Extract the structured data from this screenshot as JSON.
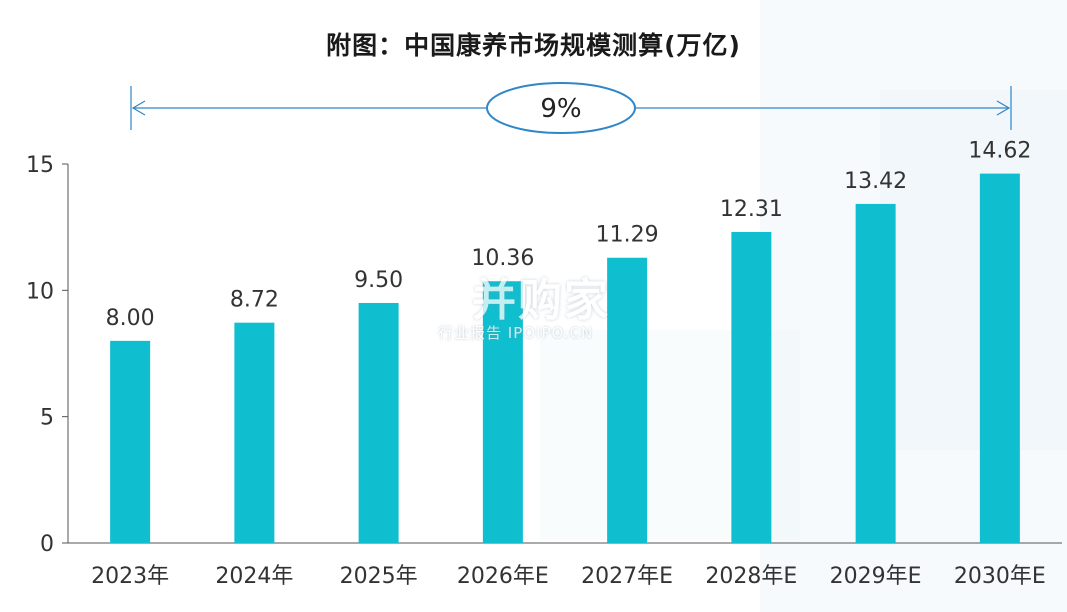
{
  "chart_data": {
    "type": "bar",
    "title": "附图：中国康养市场规模测算(万亿)",
    "categories": [
      "2023年",
      "2024年",
      "2025年",
      "2026年E",
      "2027年E",
      "2028年E",
      "2029年E",
      "2030年E"
    ],
    "values": [
      8.0,
      8.72,
      9.5,
      10.36,
      11.29,
      12.31,
      13.42,
      14.62
    ],
    "value_labels": [
      "8.00",
      "8.72",
      "9.50",
      "10.36",
      "11.29",
      "12.31",
      "13.42",
      "14.62"
    ],
    "ylim": [
      0,
      15
    ],
    "yticks": [
      0,
      5,
      10,
      15
    ],
    "xlabel": "",
    "ylabel": "",
    "grid": false,
    "bar_color": "#10bfcf",
    "annotation": {
      "text": "9%",
      "color": "#2f86c8"
    }
  },
  "watermark": {
    "main": "并购家",
    "sub": "行业报告 IPOIPO.CN",
    "icon": "bar-chart-logo-icon"
  }
}
